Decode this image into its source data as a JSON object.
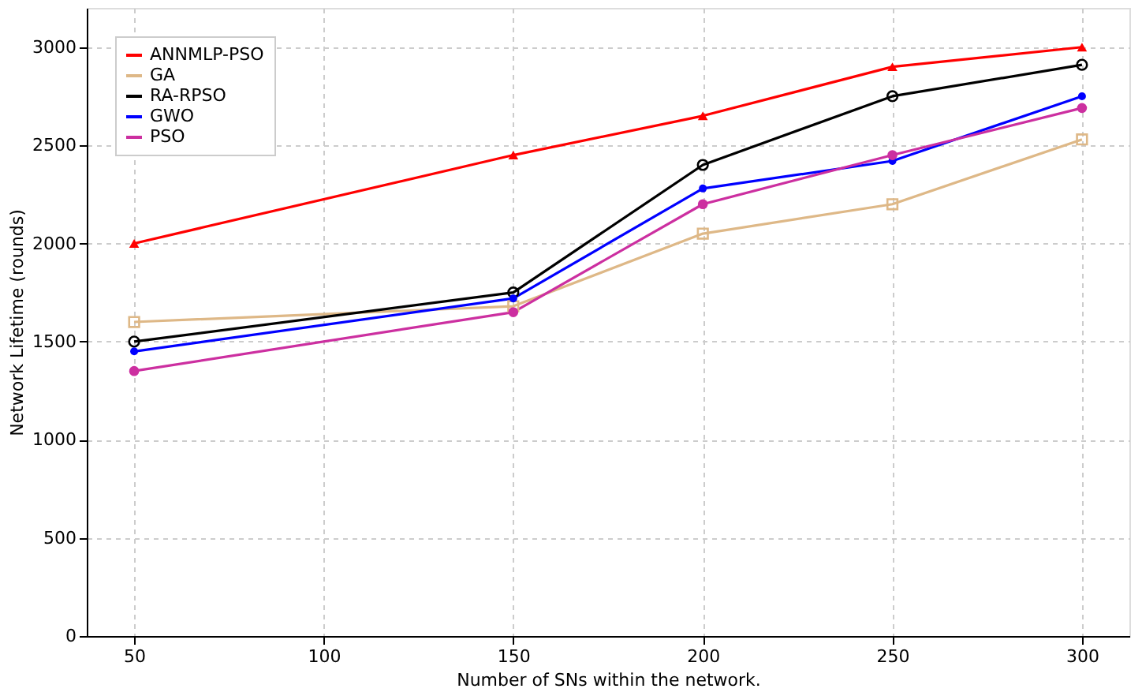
{
  "chart_data": {
    "type": "line",
    "xlabel": "Number of SNs within the network.",
    "ylabel": "Network Lifetime (rounds)",
    "x": [
      50,
      150,
      200,
      250,
      300
    ],
    "xlim": [
      37.5,
      312.5
    ],
    "xticks": [
      50,
      100,
      150,
      200,
      250,
      300
    ],
    "ylim": [
      0,
      3200
    ],
    "yticks": [
      0,
      500,
      1000,
      1500,
      2000,
      2500,
      3000
    ],
    "grid": true,
    "legend": "top left",
    "line_style": "solid",
    "series": [
      {
        "name": "ANNMLP-PSO",
        "color": "#ff0000",
        "marker": "triangle",
        "values": [
          2000,
          2450,
          2650,
          2900,
          3000
        ]
      },
      {
        "name": "GA",
        "color": "#deb887",
        "marker": "square",
        "values": [
          1600,
          1680,
          2050,
          2200,
          2530
        ]
      },
      {
        "name": "RA-RPSO",
        "color": "#000000",
        "marker": "circle",
        "values": [
          1500,
          1750,
          2400,
          2750,
          2910
        ]
      },
      {
        "name": "GWO",
        "color": "#0000ff",
        "marker": "circle",
        "values": [
          1450,
          1720,
          2280,
          2420,
          2750
        ]
      },
      {
        "name": "PSO",
        "color": "#cc2fa0",
        "marker": "circle",
        "values": [
          1350,
          1650,
          2200,
          2450,
          2690
        ]
      }
    ]
  }
}
